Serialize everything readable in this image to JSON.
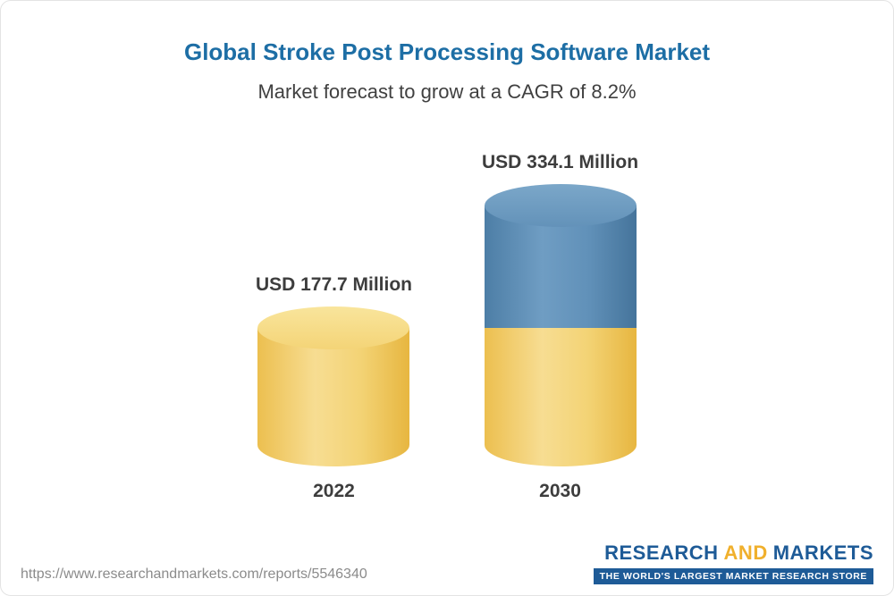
{
  "page": {
    "title": "Global Stroke Post Processing Software Market",
    "subtitle": "Market forecast to grow at a CAGR of 8.2%"
  },
  "chart_data": {
    "type": "bar",
    "style": "3d-cylinder",
    "categories": [
      "2022",
      "2030"
    ],
    "values": [
      177.7,
      334.1
    ],
    "value_labels": [
      "USD 177.7 Million",
      "USD 334.1 Million"
    ],
    "unit": "USD Million",
    "cagr_percent": 8.2,
    "ylim": [
      0,
      334.1
    ],
    "grid": false,
    "legend": "none",
    "colors": {
      "base_segment_yellow": "#f0c75f",
      "growth_segment_blue": "#5f8fb7"
    }
  },
  "footer": {
    "url": "https://www.researchandmarkets.com/reports/5546340",
    "logo": {
      "word1": "RESEARCH",
      "word2": "AND",
      "word3": "MARKETS",
      "tagline": "THE WORLD'S LARGEST MARKET RESEARCH STORE"
    }
  },
  "theme": {
    "title_color": "#1d6ea5",
    "logo_blue": "#1e5b97",
    "logo_gold": "#f0b02d"
  }
}
